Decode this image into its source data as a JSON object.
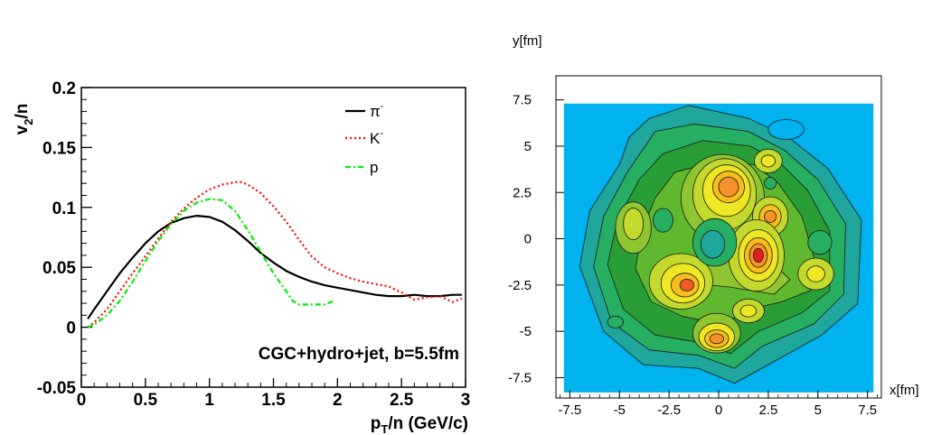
{
  "chart_data": [
    {
      "type": "line",
      "ylabel_main": "v",
      "ylabel_sub": "2",
      "ylabel_rest": "/n",
      "xlabel_main": "p",
      "xlabel_sub": "T",
      "xlabel_rest": "/n (GeV/c)",
      "xlim": [
        0,
        3
      ],
      "ylim": [
        -0.05,
        0.2
      ],
      "x_ticks": [
        "0",
        "0.5",
        "1",
        "1.5",
        "2",
        "2.5",
        "3"
      ],
      "x_tick_values": [
        0,
        0.5,
        1,
        1.5,
        2,
        2.5,
        3
      ],
      "y_ticks": [
        "-0.05",
        "0",
        "0.05",
        "0.1",
        "0.15",
        "0.2"
      ],
      "y_tick_values": [
        -0.05,
        0,
        0.05,
        0.1,
        0.15,
        0.2
      ],
      "annotation": "CGC+hydro+jet, b=5.5fm",
      "legend_position": "top-right",
      "series": [
        {
          "name": "π-",
          "name_base": "π",
          "name_sup": "-",
          "color": "#000000",
          "dash": "solid",
          "x": [
            0.05,
            0.1,
            0.2,
            0.3,
            0.4,
            0.5,
            0.6,
            0.7,
            0.8,
            0.9,
            1.0,
            1.1,
            1.2,
            1.3,
            1.4,
            1.5,
            1.6,
            1.7,
            1.8,
            1.9,
            2.0,
            2.1,
            2.2,
            2.3,
            2.4,
            2.5,
            2.6,
            2.7,
            2.8,
            2.9,
            2.97
          ],
          "y": [
            0.007,
            0.015,
            0.03,
            0.045,
            0.058,
            0.07,
            0.08,
            0.087,
            0.091,
            0.093,
            0.092,
            0.088,
            0.081,
            0.072,
            0.062,
            0.054,
            0.047,
            0.042,
            0.038,
            0.035,
            0.033,
            0.031,
            0.029,
            0.027,
            0.026,
            0.026,
            0.027,
            0.026,
            0.026,
            0.027,
            0.027
          ]
        },
        {
          "name": "K-",
          "name_base": "K",
          "name_sup": "-",
          "color": "#ff0000",
          "dash": "dotted",
          "x": [
            0.05,
            0.1,
            0.2,
            0.3,
            0.4,
            0.5,
            0.6,
            0.7,
            0.8,
            0.9,
            1.0,
            1.1,
            1.2,
            1.25,
            1.3,
            1.4,
            1.5,
            1.6,
            1.7,
            1.8,
            1.9,
            2.0,
            2.1,
            2.2,
            2.3,
            2.4,
            2.5,
            2.6,
            2.7,
            2.8,
            2.9,
            2.97
          ],
          "y": [
            0.0,
            0.004,
            0.015,
            0.03,
            0.045,
            0.059,
            0.074,
            0.088,
            0.099,
            0.108,
            0.115,
            0.119,
            0.121,
            0.121,
            0.119,
            0.112,
            0.101,
            0.088,
            0.073,
            0.059,
            0.05,
            0.045,
            0.041,
            0.038,
            0.036,
            0.034,
            0.029,
            0.023,
            0.025,
            0.026,
            0.021,
            0.024
          ]
        },
        {
          "name": "p",
          "name_base": "p",
          "name_sup": "",
          "color": "#00ee00",
          "dash": "dashdot",
          "x": [
            0.05,
            0.1,
            0.2,
            0.3,
            0.4,
            0.5,
            0.6,
            0.7,
            0.8,
            0.9,
            1.0,
            1.1,
            1.2,
            1.3,
            1.4,
            1.5,
            1.6,
            1.65,
            1.7,
            1.8,
            1.9,
            1.97
          ],
          "y": [
            0.0,
            0.002,
            0.01,
            0.022,
            0.038,
            0.055,
            0.072,
            0.086,
            0.097,
            0.104,
            0.107,
            0.106,
            0.097,
            0.081,
            0.063,
            0.045,
            0.03,
            0.022,
            0.019,
            0.019,
            0.019,
            0.022
          ]
        }
      ]
    },
    {
      "type": "heatmap",
      "xlabel": "x[fm]",
      "ylabel": "y[fm]",
      "xlim": [
        -8.2,
        8.2
      ],
      "ylim": [
        -8.6,
        8.8
      ],
      "x_ticks": [
        "-7.5",
        "-5",
        "-2.5",
        "0",
        "2.5",
        "5",
        "7.5"
      ],
      "x_tick_values": [
        -7.5,
        -5,
        -2.5,
        0,
        2.5,
        5,
        7.5
      ],
      "y_ticks": [
        "-7.5",
        "-5",
        "-2.5",
        "0",
        "2.5",
        "5",
        "7.5"
      ],
      "y_tick_values": [
        -7.5,
        -5,
        -2.5,
        0,
        2.5,
        5,
        7.5
      ],
      "colors": {
        "background": "#00b2ee",
        "levels": [
          "#1fa79e",
          "#26ae62",
          "#2a9e36",
          "#5fb82d",
          "#8ec531",
          "#c4d92e",
          "#efe624",
          "#f6bd1c",
          "#f5912a",
          "#ef5a22",
          "#e02020"
        ]
      }
    }
  ]
}
